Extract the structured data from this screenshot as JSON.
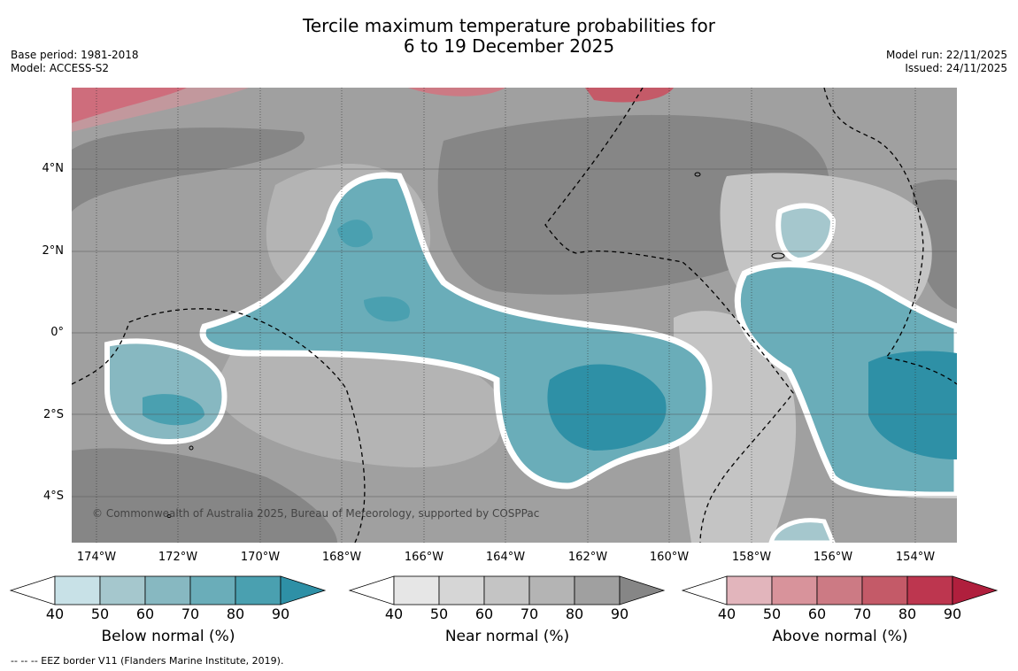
{
  "title": {
    "line1": "Tercile maximum temperature probabilities for",
    "line2": "6 to 19 December 2025"
  },
  "meta_left": {
    "base_period": "Base period: 1981-2018",
    "model": "Model: ACCESS-S2"
  },
  "meta_right": {
    "model_run": "Model run: 22/11/2025",
    "issued": "Issued: 24/11/2025"
  },
  "map": {
    "copyright": "© Commonwealth of Australia 2025, Bureau of Meteorology, supported by COSPPac",
    "lat_labels": [
      "4°N",
      "2°N",
      "0°",
      "2°S",
      "4°S"
    ],
    "lon_labels": [
      "174°W",
      "172°W",
      "170°W",
      "168°W",
      "166°W",
      "164°W",
      "162°W",
      "160°W",
      "158°W",
      "156°W",
      "154°W"
    ]
  },
  "legends": [
    {
      "title": "Below normal (%)",
      "ticks": [
        "40",
        "50",
        "60",
        "70",
        "80",
        "90"
      ],
      "colors": [
        "#ffffff",
        "#c8e1e7",
        "#a5c7cd",
        "#87b8c1",
        "#6aadb9",
        "#4aa0b0",
        "#2e90a6"
      ]
    },
    {
      "title": "Near normal (%)",
      "ticks": [
        "40",
        "50",
        "60",
        "70",
        "80",
        "90"
      ],
      "colors": [
        "#ffffff",
        "#e6e6e6",
        "#d6d6d6",
        "#c4c4c4",
        "#b4b4b4",
        "#a0a0a0",
        "#868686"
      ]
    },
    {
      "title": "Above normal (%)",
      "ticks": [
        "40",
        "50",
        "60",
        "70",
        "80",
        "90"
      ],
      "colors": [
        "#ffffff",
        "#e2b5bc",
        "#d8939b",
        "#cc7a84",
        "#c45a68",
        "#bd364f",
        "#b01f3d"
      ]
    }
  ],
  "footer": "--  --  -- EEZ border V11 (Flanders Marine Institute, 2019)."
}
